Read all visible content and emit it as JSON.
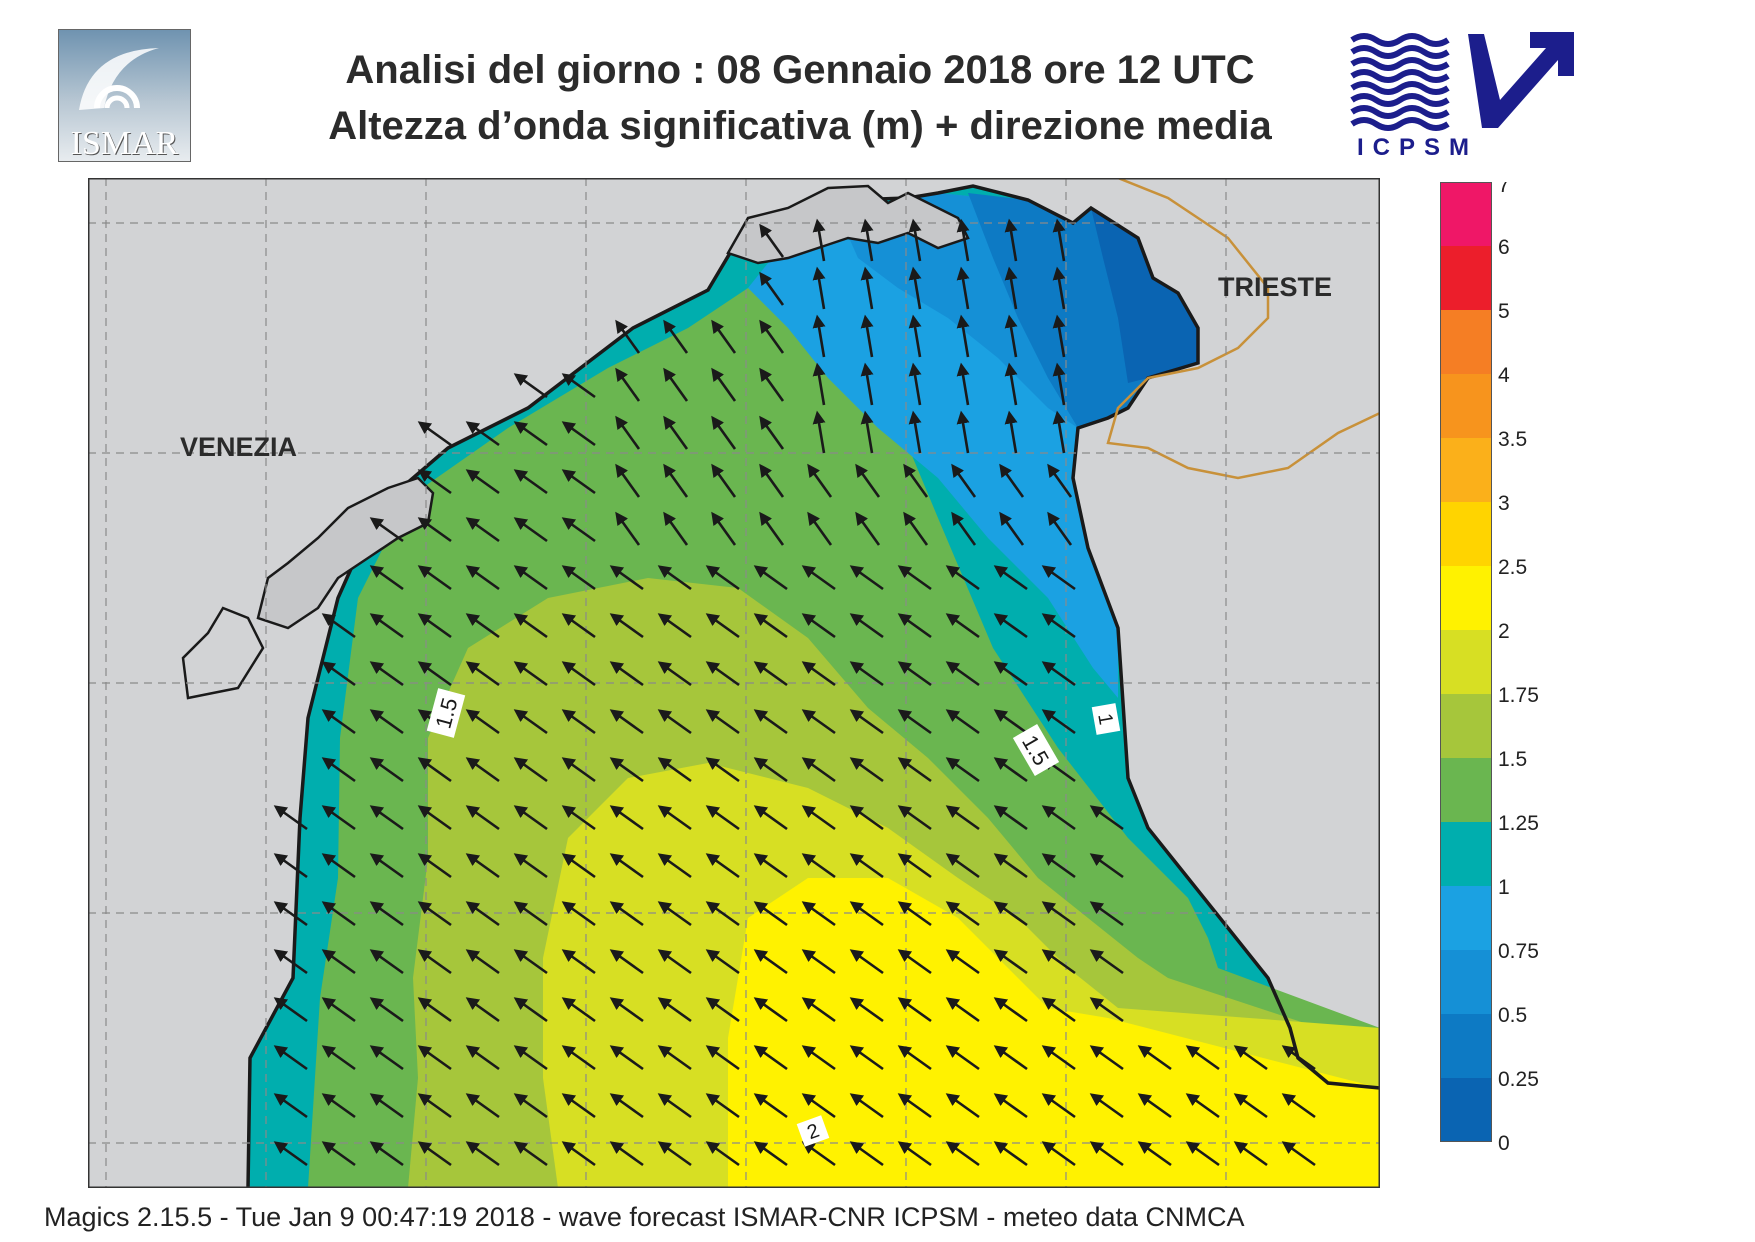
{
  "header": {
    "title_line1": "Analisi del giorno :  08  Gennaio  2018   ore 12 UTC",
    "title_line2": "Altezza d’onda significativa (m) + direzione media"
  },
  "logos": {
    "left": {
      "text": "ISMAR",
      "icon": "ismar-logo"
    },
    "right": {
      "text": "ICPSM",
      "icon": "icpsm-logo",
      "color": "#1c1e8c"
    }
  },
  "map": {
    "labels": {
      "venezia": "VENEZIA",
      "trieste": "TRIESTE"
    },
    "contour_labels": [
      "1.5",
      "1.5",
      "1",
      "2"
    ],
    "colors": {
      "land": "#d2d3d5",
      "coast": "#1a1a1a",
      "border": "#c8913a",
      "arrow": "#1a1a1a"
    },
    "wave_direction": "from south-east (arrows point north-west)"
  },
  "colorbar": {
    "unit": "m",
    "ticks": [
      "7",
      "6",
      "5",
      "4",
      "3.5",
      "3",
      "2.5",
      "2",
      "1.75",
      "1.5",
      "1.25",
      "1",
      "0.75",
      "0.5",
      "0.25",
      "0"
    ],
    "bins": [
      {
        "range": "6-7",
        "color": "#ef1767"
      },
      {
        "range": "5-6",
        "color": "#ec1e2b"
      },
      {
        "range": "4-5",
        "color": "#f57e24"
      },
      {
        "range": "3.5-4",
        "color": "#f7941d"
      },
      {
        "range": "3-3.5",
        "color": "#fbb01a"
      },
      {
        "range": "2.5-3",
        "color": "#ffd400"
      },
      {
        "range": "2-2.5",
        "color": "#fff200"
      },
      {
        "range": "1.75-2",
        "color": "#d7df23"
      },
      {
        "range": "1.5-1.75",
        "color": "#a6c63b"
      },
      {
        "range": "1.25-1.5",
        "color": "#6ab650"
      },
      {
        "range": "1-1.25",
        "color": "#00aeae"
      },
      {
        "range": "0.75-1",
        "color": "#1ba1e2"
      },
      {
        "range": "0.5-0.75",
        "color": "#1590d6"
      },
      {
        "range": "0.25-0.5",
        "color": "#0d7ac4"
      },
      {
        "range": "0-0.25",
        "color": "#0a64b2"
      }
    ]
  },
  "footer": {
    "text": "Magics 2.15.5 - Tue Jan  9 00:47:19 2018 - wave forecast  ISMAR-CNR  ICPSM - meteo data   CNMCA"
  }
}
